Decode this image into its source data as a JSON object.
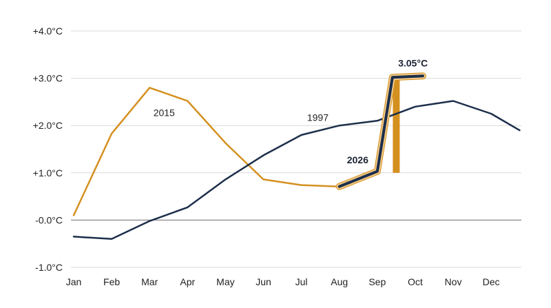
{
  "chart_data": {
    "type": "line",
    "categories": [
      "Jan",
      "Feb",
      "Mar",
      "Apr",
      "May",
      "Jun",
      "Jul",
      "Aug",
      "Sep",
      "Oct",
      "Nov",
      "Dec"
    ],
    "y_ticks": [
      "+4.0°C",
      "+3.0°C",
      "+2.0°C",
      "+1.0°C",
      "-0.0°C",
      "-1.0°C"
    ],
    "y_tick_values": [
      4,
      3,
      2,
      1,
      0,
      -1
    ],
    "ylim": [
      -1,
      4
    ],
    "grid": true,
    "colors": {
      "series_1997": "#1c2e4a",
      "series_2015": "#d4901f",
      "highlight": "#f0c98a",
      "grid": "#d9d9d9",
      "zero": "#6b6b6b"
    },
    "series": [
      {
        "name": "1997",
        "x": [
          1,
          2,
          3,
          4,
          5,
          6,
          7,
          8,
          9,
          10,
          11,
          12,
          12.75
        ],
        "values": [
          -0.35,
          -0.4,
          -0.02,
          0.27,
          0.86,
          1.37,
          1.8,
          2.0,
          2.1,
          2.4,
          2.52,
          2.25,
          1.9
        ]
      },
      {
        "name": "2015",
        "x": [
          1,
          2,
          3,
          4,
          5,
          6,
          7,
          8
        ],
        "values": [
          0.1,
          1.83,
          2.8,
          2.52,
          1.63,
          0.86,
          0.74,
          0.71
        ]
      },
      {
        "name": "2026",
        "x": [
          8,
          9,
          9.4,
          10.2
        ],
        "values": [
          0.71,
          1.03,
          3.02,
          3.05
        ]
      }
    ],
    "annotations": [
      {
        "text": "2015",
        "x": 3.1,
        "y": 2.2
      },
      {
        "text": "1997",
        "x": 7.15,
        "y": 2.1
      },
      {
        "text": "2026",
        "x": 8.2,
        "y": 1.2
      },
      {
        "text": "3.05°C",
        "x": 9.55,
        "y": 3.25
      }
    ],
    "bar_marker": {
      "x": 9.5,
      "from": 1.0,
      "to": 3.02
    }
  }
}
